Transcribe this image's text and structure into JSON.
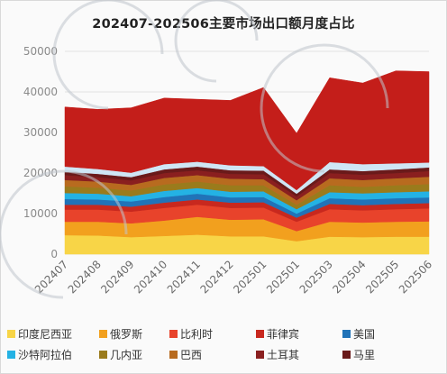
{
  "title": "202407-202506主要市场出口额月度占比",
  "chart_data": {
    "type": "area",
    "stacked": true,
    "title": "202407-202506主要市场出口额月度占比",
    "xlabel": "",
    "ylabel": "",
    "ylim": [
      0,
      50000
    ],
    "yticks": [
      0,
      10000,
      20000,
      30000,
      40000,
      50000
    ],
    "grid": true,
    "legend_position": "bottom",
    "categories": [
      "202407",
      "202408",
      "202409",
      "202410",
      "202411",
      "202412",
      "202501",
      "202501",
      "202503",
      "202504",
      "202505",
      "202506"
    ],
    "series": [
      {
        "name": "印度尼西亚",
        "color": "#f8d547",
        "values": [
          4700,
          4600,
          4200,
          4500,
          4800,
          4400,
          4400,
          3200,
          4300,
          4200,
          4300,
          4300
        ]
      },
      {
        "name": "俄罗斯",
        "color": "#f2a01e",
        "values": [
          3300,
          3400,
          3400,
          3800,
          4400,
          4100,
          4200,
          2500,
          3700,
          3600,
          3700,
          3800
        ]
      },
      {
        "name": "比利时",
        "color": "#e8432b",
        "values": [
          3000,
          3000,
          2900,
          3100,
          3000,
          2900,
          2900,
          2300,
          3100,
          3000,
          3100,
          3200
        ]
      },
      {
        "name": "菲律宾",
        "color": "#c8281e",
        "values": [
          1200,
          1200,
          1200,
          1300,
          1300,
          1300,
          1300,
          1000,
          1300,
          1300,
          1300,
          1300
        ]
      },
      {
        "name": "美国",
        "color": "#2173b8",
        "values": [
          1400,
          1300,
          1300,
          1400,
          1400,
          1300,
          1300,
          1000,
          1400,
          1400,
          1400,
          1400
        ]
      },
      {
        "name": "沙特阿拉伯",
        "color": "#24b2e4",
        "values": [
          1500,
          1400,
          1300,
          1500,
          1400,
          1400,
          1400,
          1100,
          1500,
          1500,
          1500,
          1500
        ]
      },
      {
        "name": "几内亚",
        "color": "#9a7b1c",
        "values": [
          1600,
          1500,
          1400,
          1600,
          1600,
          1600,
          1500,
          1100,
          1700,
          1600,
          1700,
          1800
        ]
      },
      {
        "name": "巴西",
        "color": "#b86b1f",
        "values": [
          1600,
          1500,
          1400,
          1600,
          1600,
          1600,
          1500,
          1100,
          1700,
          1700,
          1700,
          1800
        ]
      },
      {
        "name": "土耳其",
        "color": "#8a1f1f",
        "values": [
          1200,
          1100,
          1100,
          1200,
          1200,
          1200,
          1200,
          900,
          1300,
          1300,
          1300,
          1400
        ]
      },
      {
        "name": "马里",
        "color": "#6a1a1a",
        "values": [
          800,
          800,
          800,
          900,
          900,
          900,
          900,
          700,
          900,
          900,
          900,
          900
        ]
      },
      {
        "name": "",
        "color": "#cfe6f5",
        "values": [
          1300,
          1200,
          1100,
          1300,
          1200,
          1200,
          1100,
          900,
          1800,
          1700,
          1500,
          1200
        ]
      },
      {
        "name": "",
        "color": "#c41e1a",
        "values": [
          14700,
          14700,
          16000,
          16300,
          15400,
          16000,
          19400,
          14000,
          20800,
          20000,
          22800,
          22400
        ]
      }
    ]
  },
  "watermark": "CCTD"
}
